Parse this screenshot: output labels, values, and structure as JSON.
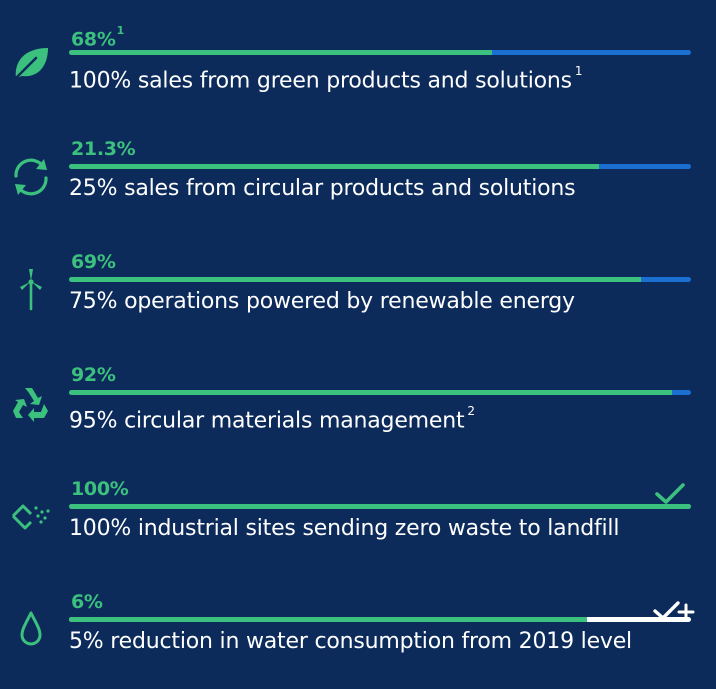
{
  "colors": {
    "background": "#0c2b5b",
    "progress": "#3cc07e",
    "remaining": "#1a6fd0",
    "text": "#ffffff"
  },
  "targets": [
    {
      "icon": "leaf-icon",
      "value": "68%",
      "value_note": "1",
      "label": "100% sales from green products and solutions",
      "label_note": "1",
      "progress": 0.68
    },
    {
      "icon": "circular-arrows-icon",
      "value": "21.3%",
      "label": "25% sales from circular products and solutions",
      "progress": 0.852
    },
    {
      "icon": "wind-turbine-icon",
      "value": "69%",
      "label": "75% operations powered by renewable energy",
      "progress": 0.92
    },
    {
      "icon": "recycle-icon",
      "value": "92%",
      "label": "95% circular materials management",
      "label_note": "2",
      "progress": 0.97
    },
    {
      "icon": "waste-bin-icon",
      "value": "100%",
      "label": "100% industrial sites sending zero waste to landfill",
      "progress": 1.0,
      "status_icon": "checkmark-icon"
    },
    {
      "icon": "water-drop-icon",
      "value": "6%",
      "label": "5% reduction in water consumption from 2019 level",
      "progress": 0.833,
      "exceeded_progress": 1.0,
      "status_icon": "check-plus-icon"
    }
  ]
}
